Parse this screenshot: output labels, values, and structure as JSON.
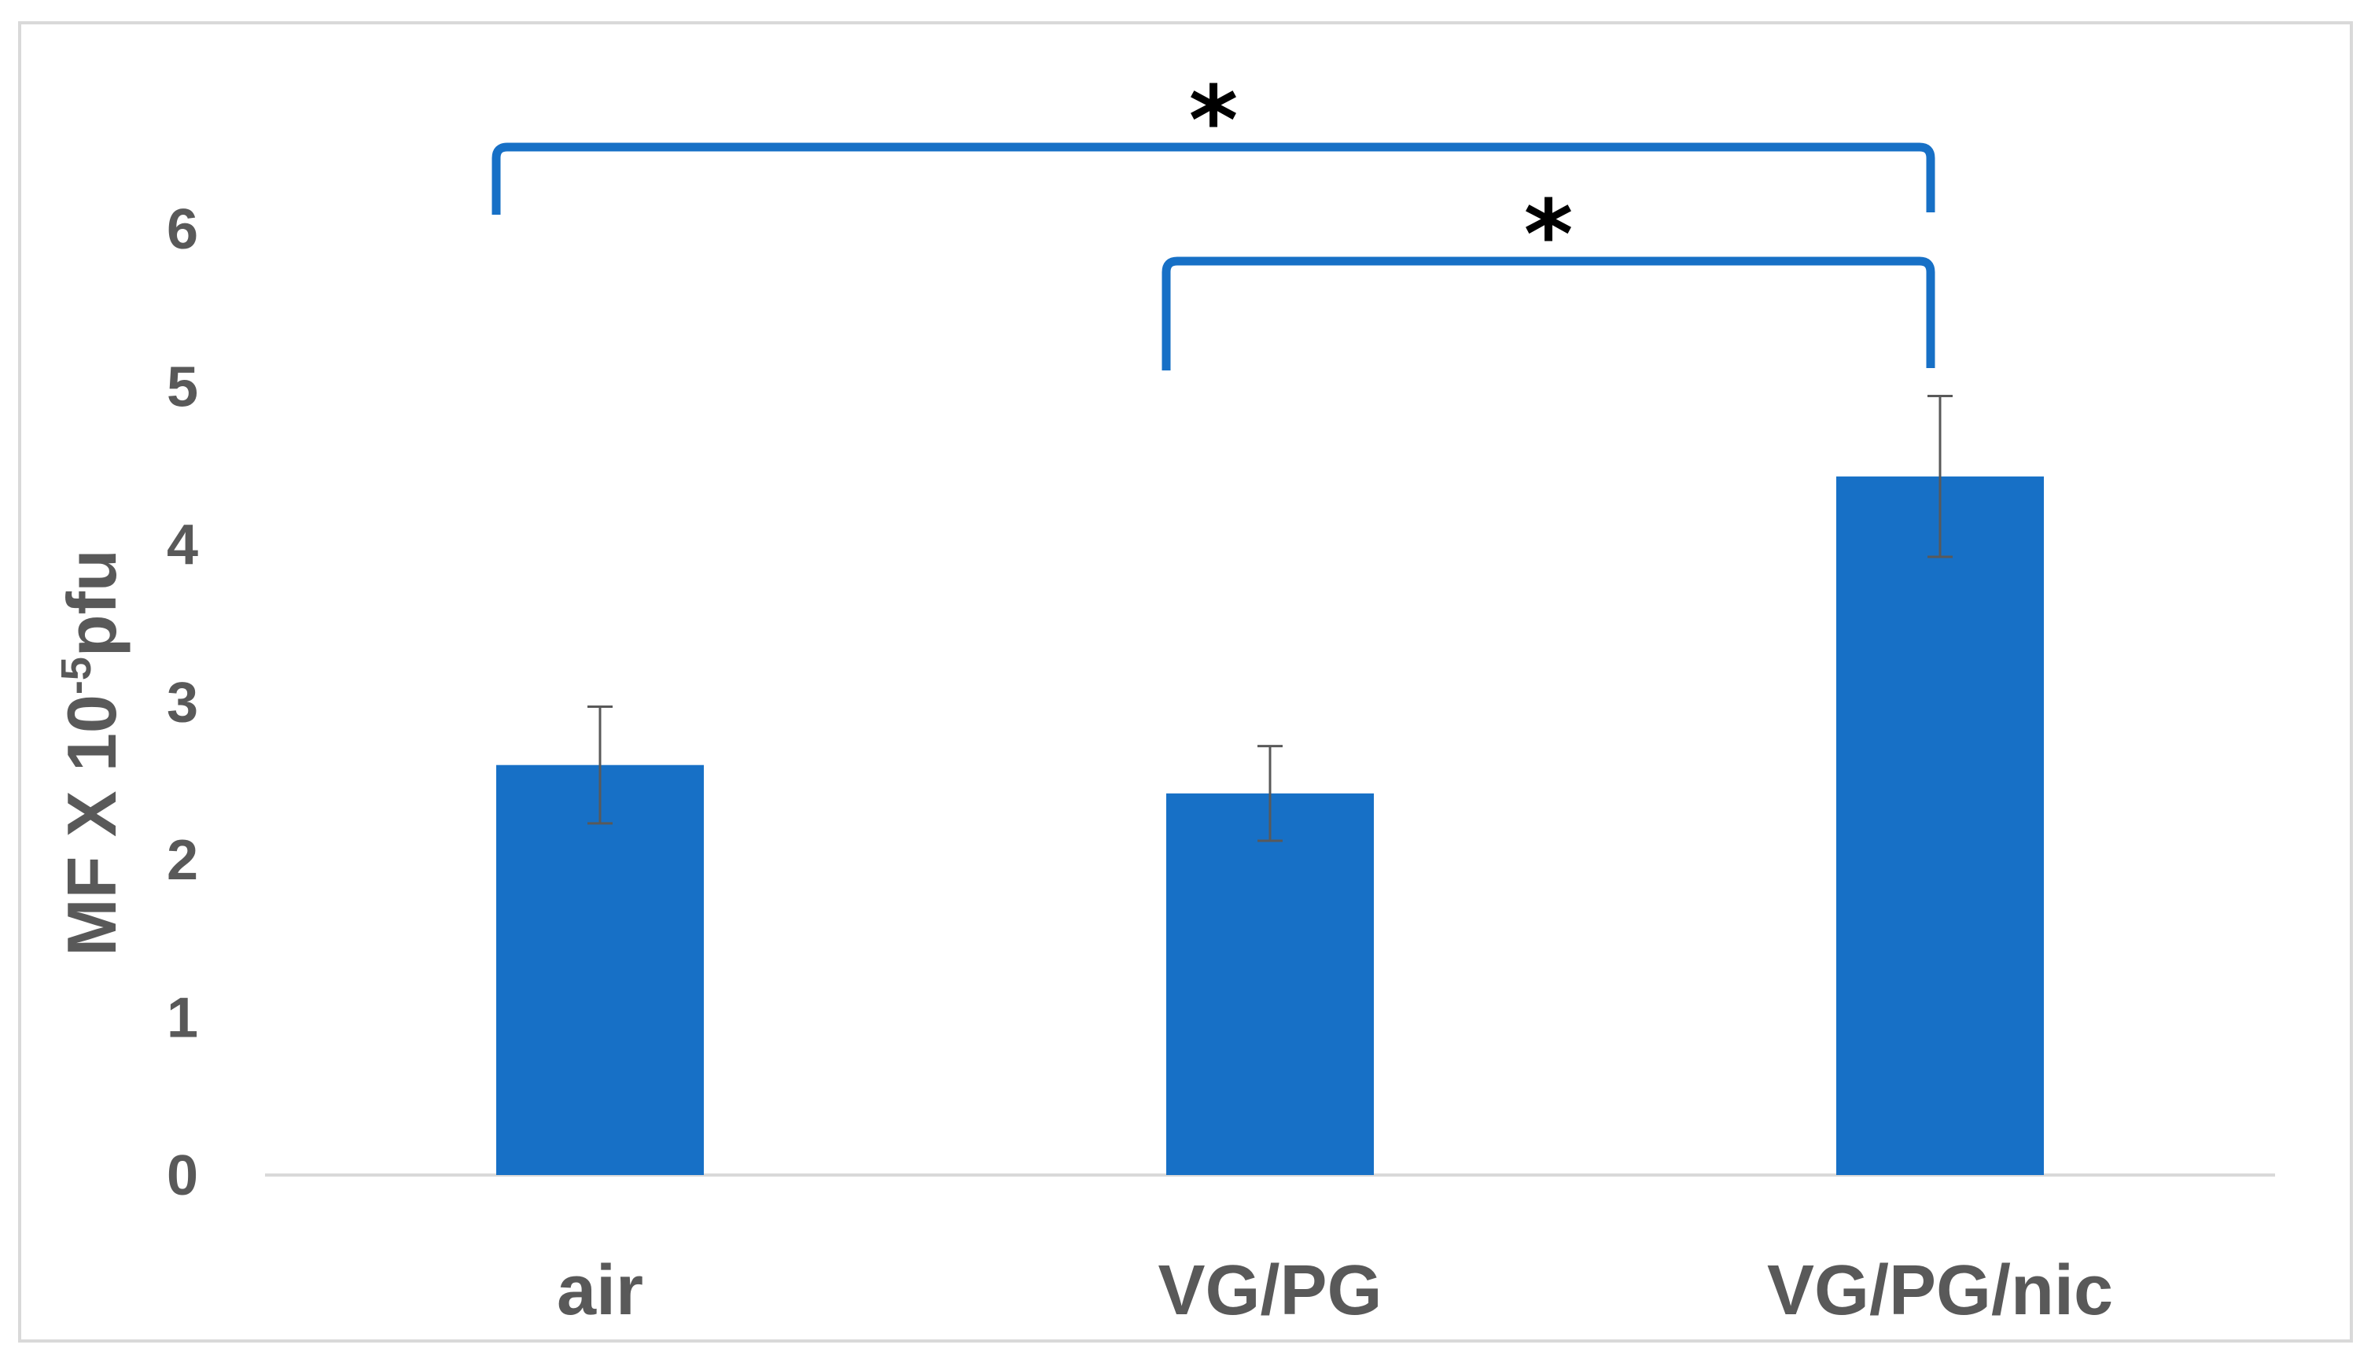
{
  "chart_data": {
    "type": "bar",
    "title": "",
    "xlabel": "",
    "ylabel": {
      "prefix": "MF X 10",
      "superscript": "-5",
      "suffix": "pfu"
    },
    "categories": [
      "air",
      "VG/PG",
      "VG/PG/nic"
    ],
    "values": [
      2.6,
      2.42,
      4.43
    ],
    "error_bars": [
      0.37,
      0.3,
      0.51
    ],
    "ylim": [
      0,
      6
    ],
    "yticks": [
      "0",
      "1",
      "2",
      "3",
      "4",
      "5",
      "6"
    ],
    "grid": false,
    "legend": "none",
    "bar_color": "#1770C6",
    "axis_line_color": "#D9D9D9",
    "error_bar_color": "#595959",
    "significance": [
      {
        "from": "air",
        "to": "VG/PG/nic",
        "label": "*"
      },
      {
        "from": "VG/PG",
        "to": "VG/PG/nic",
        "label": "*"
      }
    ],
    "bracket_color": "#1770C6"
  }
}
